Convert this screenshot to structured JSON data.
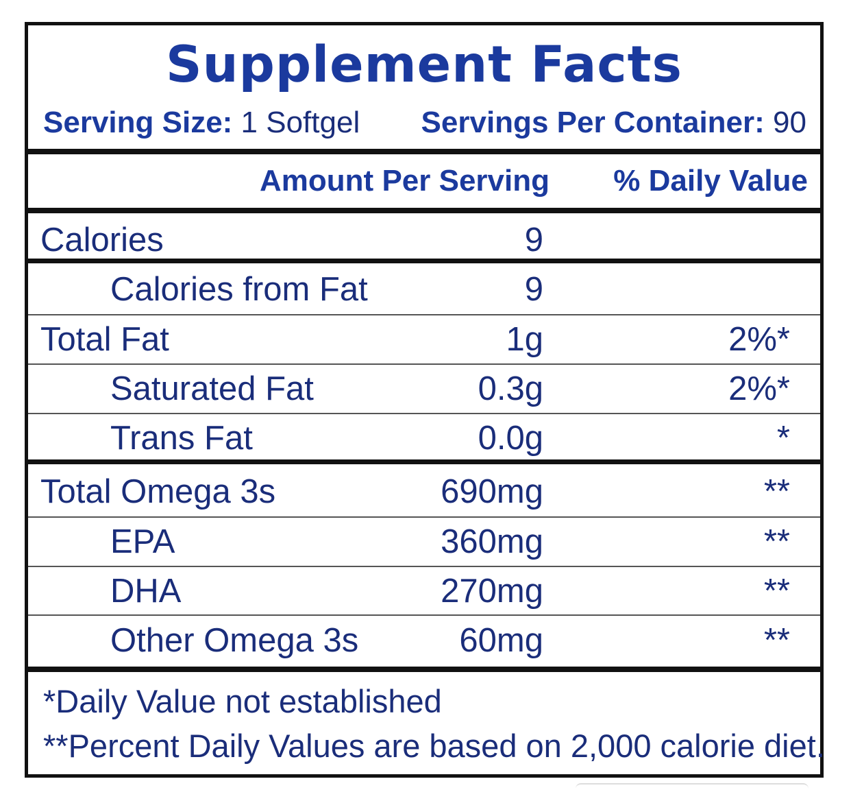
{
  "title": "Supplement Facts",
  "serving": {
    "size_label": "Serving Size:",
    "size_value": "1 Softgel",
    "per_container_label": "Servings Per Container:",
    "per_container_value": "90"
  },
  "columns": {
    "amount": "Amount Per Serving",
    "daily_value": "% Daily Value"
  },
  "rows": [
    {
      "name": "Calories",
      "amount": "9",
      "dv": ""
    },
    {
      "name": "Calories from Fat",
      "amount": "9",
      "dv": ""
    },
    {
      "name": "Total Fat",
      "amount": "1g",
      "dv": "2%*"
    },
    {
      "name": "Saturated Fat",
      "amount": "0.3g",
      "dv": "2%*"
    },
    {
      "name": "Trans Fat",
      "amount": "0.0g",
      "dv": "*"
    },
    {
      "name": "Total Omega 3s",
      "amount": "690mg",
      "dv": "**"
    },
    {
      "name": "EPA",
      "amount": "360mg",
      "dv": "**"
    },
    {
      "name": "DHA",
      "amount": "270mg",
      "dv": "**"
    },
    {
      "name": "Other Omega 3s",
      "amount": "60mg",
      "dv": "**"
    }
  ],
  "footnotes": {
    "line1": "*Daily Value not established",
    "line2": "**Percent Daily Values are based on 2,000 calorie diet."
  },
  "colors": {
    "title": "#1b3a9e",
    "text": "#1a2d7a",
    "border": "#111111"
  }
}
